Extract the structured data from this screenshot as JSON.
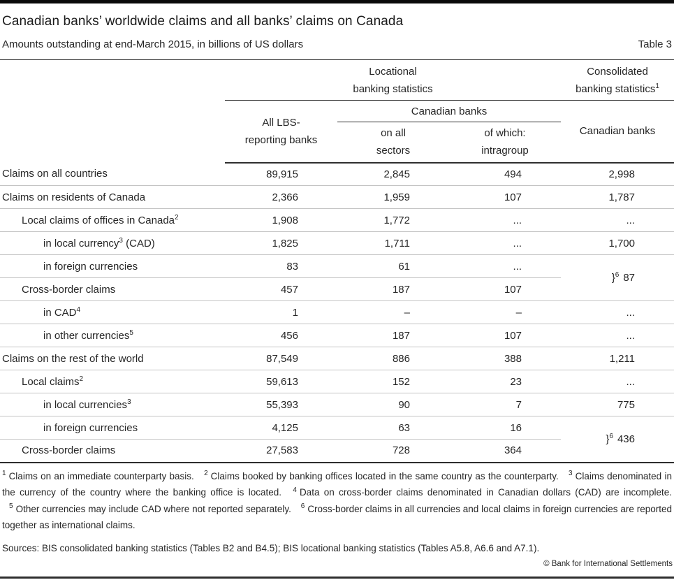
{
  "page": {
    "title": "Canadian banks’ worldwide claims and all banks’ claims on Canada",
    "subtitle": "Amounts outstanding at end-March 2015, in billions of US dollars",
    "table_label": "Table 3",
    "copyright": "© Bank for International Settlements"
  },
  "table": {
    "headers": {
      "locational": {
        "line1": "Locational",
        "line2": "banking statistics"
      },
      "consolidated": {
        "line1": "Consolidated",
        "line2": "banking statistics",
        "sup": "1"
      },
      "all_lbs": {
        "line1": "All LBS-",
        "line2": "reporting banks"
      },
      "canadian_banks_group": "Canadian banks",
      "on_all_sectors": {
        "line1": "on all",
        "line2": "sectors"
      },
      "of_which_intragroup": {
        "line1": "of which:",
        "line2": "intragroup"
      },
      "consolidated_canadian": "Canadian banks"
    },
    "merged_brace": "}",
    "rows": [
      {
        "indent": 0,
        "label": "Claims on all countries",
        "sup": "",
        "suffix": "",
        "v": [
          "89,915",
          "2,845",
          "494"
        ],
        "c4": {
          "kind": "plain",
          "value": "2,998"
        }
      },
      {
        "indent": 0,
        "label": "Claims on residents of Canada",
        "sup": "",
        "suffix": "",
        "v": [
          "2,366",
          "1,959",
          "107"
        ],
        "c4": {
          "kind": "plain",
          "value": "1,787"
        }
      },
      {
        "indent": 1,
        "label": "Local claims of offices in Canada",
        "sup": "2",
        "suffix": "",
        "v": [
          "1,908",
          "1,772",
          "..."
        ],
        "c4": {
          "kind": "plain",
          "value": "..."
        }
      },
      {
        "indent": 2,
        "label": "in local currency",
        "sup": "3",
        "suffix": " (CAD)",
        "v": [
          "1,825",
          "1,711",
          "..."
        ],
        "c4": {
          "kind": "plain",
          "value": "1,700"
        }
      },
      {
        "indent": 2,
        "label": "in foreign currencies",
        "sup": "",
        "suffix": "",
        "v": [
          "83",
          "61",
          "..."
        ],
        "c4": {
          "kind": "merged",
          "sup": "6",
          "value": "87",
          "rowspan": 2,
          "dark_bottom": false
        }
      },
      {
        "indent": 1,
        "label": "Cross-border claims",
        "sup": "",
        "suffix": "",
        "v": [
          "457",
          "187",
          "107"
        ],
        "c4": {
          "kind": "skip"
        }
      },
      {
        "indent": 2,
        "label": "in CAD",
        "sup": "4",
        "suffix": "",
        "v": [
          "1",
          "–",
          "–"
        ],
        "c4": {
          "kind": "plain",
          "value": "..."
        }
      },
      {
        "indent": 2,
        "label": "in other currencies",
        "sup": "5",
        "suffix": "",
        "v": [
          "456",
          "187",
          "107"
        ],
        "c4": {
          "kind": "plain",
          "value": "..."
        }
      },
      {
        "indent": 0,
        "label": "Claims on the rest of the world",
        "sup": "",
        "suffix": "",
        "v": [
          "87,549",
          "886",
          "388"
        ],
        "c4": {
          "kind": "plain",
          "value": "1,211"
        }
      },
      {
        "indent": 1,
        "label": "Local claims",
        "sup": "2",
        "suffix": "",
        "v": [
          "59,613",
          "152",
          "23"
        ],
        "c4": {
          "kind": "plain",
          "value": "..."
        }
      },
      {
        "indent": 2,
        "label": "in local currencies",
        "sup": "3",
        "suffix": "",
        "v": [
          "55,393",
          "90",
          "7"
        ],
        "c4": {
          "kind": "plain",
          "value": "775"
        }
      },
      {
        "indent": 2,
        "label": "in foreign currencies",
        "sup": "",
        "suffix": "",
        "v": [
          "4,125",
          "63",
          "16"
        ],
        "c4": {
          "kind": "merged",
          "sup": "6",
          "value": "436",
          "rowspan": 2,
          "dark_bottom": true
        }
      },
      {
        "indent": 1,
        "label": "Cross-border claims",
        "sup": "",
        "suffix": "",
        "v": [
          "27,583",
          "728",
          "364"
        ],
        "c4": {
          "kind": "skip"
        },
        "last": true
      }
    ]
  },
  "footnotes": [
    {
      "n": "1",
      "text": "Claims on an immediate counterparty basis."
    },
    {
      "n": "2",
      "text": "Claims booked by banking offices located in the same country as the counterparty."
    },
    {
      "n": "3",
      "text": "Claims denominated in the currency of the country where the banking office is located."
    },
    {
      "n": "4",
      "text": "Data on cross-border claims denominated in Canadian dollars (CAD) are incomplete."
    },
    {
      "n": "5",
      "text": "Other currencies may include CAD where not reported separately."
    },
    {
      "n": "6",
      "text": "Cross-border claims in all currencies and local claims in foreign currencies are reported together as international claims."
    }
  ],
  "sources": "Sources: BIS consolidated banking statistics (Tables B2 and B4.5); BIS locational banking statistics (Tables A5.8, A6.6 and A7.1).",
  "colors": {
    "text": "#262626",
    "line_dark": "#2e2e2e",
    "line_light": "#c4c4c4",
    "bar_black": "#0a0a0a"
  }
}
